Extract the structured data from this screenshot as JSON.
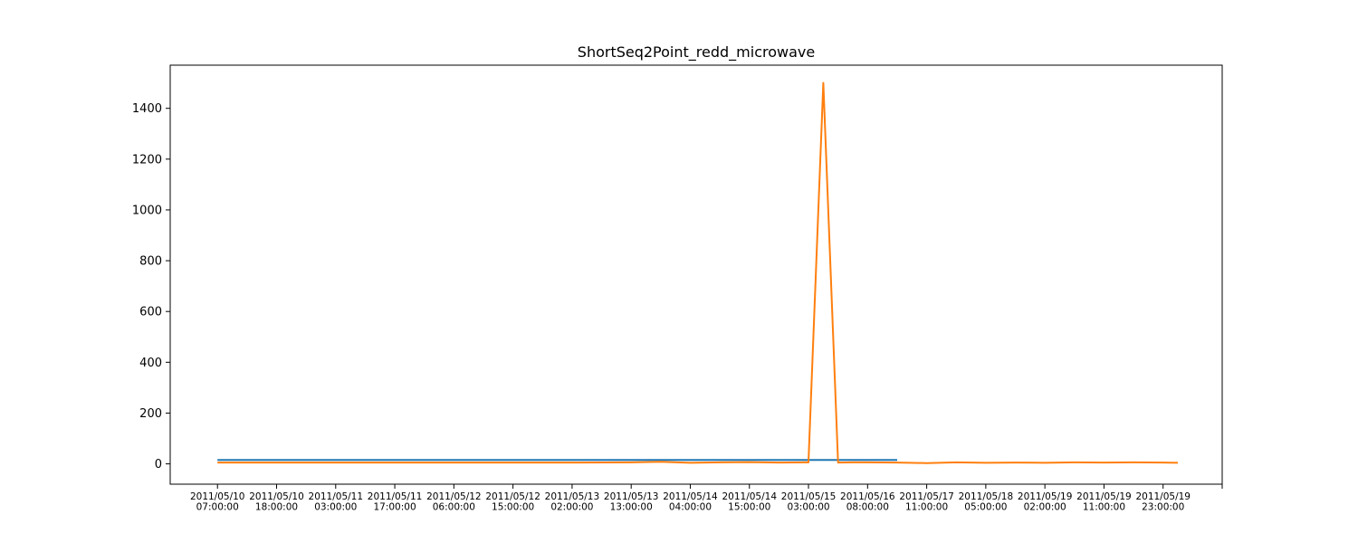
{
  "chart_data": {
    "type": "line",
    "title": "ShortSeq2Point_redd_microwave",
    "xlabel": "",
    "ylabel": "",
    "ylim": [
      -80,
      1570
    ],
    "xlim": [
      -0.8,
      17.0
    ],
    "grid": false,
    "legend": "none",
    "yticks": [
      0,
      200,
      400,
      600,
      800,
      1000,
      1200,
      1400
    ],
    "xtick_labels": [
      [
        "2011/05/10",
        "07:00:00"
      ],
      [
        "2011/05/10",
        "18:00:00"
      ],
      [
        "2011/05/11",
        "03:00:00"
      ],
      [
        "2011/05/11",
        "17:00:00"
      ],
      [
        "2011/05/12",
        "06:00:00"
      ],
      [
        "2011/05/12",
        "15:00:00"
      ],
      [
        "2011/05/13",
        "02:00:00"
      ],
      [
        "2011/05/13",
        "13:00:00"
      ],
      [
        "2011/05/14",
        "04:00:00"
      ],
      [
        "2011/05/14",
        "15:00:00"
      ],
      [
        "2011/05/15",
        "03:00:00"
      ],
      [
        "2011/05/16",
        "08:00:00"
      ],
      [
        "2011/05/17",
        "11:00:00"
      ],
      [
        "2011/05/18",
        "05:00:00"
      ],
      [
        "2011/05/19",
        "02:00:00"
      ],
      [
        "2011/05/19",
        "11:00:00"
      ],
      [
        "2011/05/19",
        "23:00:00"
      ]
    ],
    "series": [
      {
        "color": "#1f77b4",
        "x": [
          0,
          1,
          2,
          3,
          4,
          5,
          6,
          7,
          8,
          9,
          10,
          11,
          11.5
        ],
        "y": [
          15,
          15,
          15,
          15,
          15,
          15,
          15,
          15,
          15,
          15,
          15,
          15,
          15
        ]
      },
      {
        "color": "#ff7f0e",
        "x": [
          0,
          1,
          2,
          3,
          4,
          5,
          6,
          7,
          7.5,
          8,
          8.5,
          9,
          9.5,
          10,
          10.25,
          10.5,
          10.75,
          11,
          11.5,
          12,
          12.5,
          13,
          13.5,
          14,
          14.5,
          15,
          15.5,
          16,
          16.25
        ],
        "y": [
          5,
          5,
          5,
          5,
          5,
          5,
          5,
          6,
          8,
          4,
          6,
          7,
          5,
          6,
          1500,
          5,
          6,
          6,
          5,
          3,
          6,
          4,
          5,
          4,
          6,
          5,
          6,
          5,
          4
        ]
      }
    ]
  }
}
